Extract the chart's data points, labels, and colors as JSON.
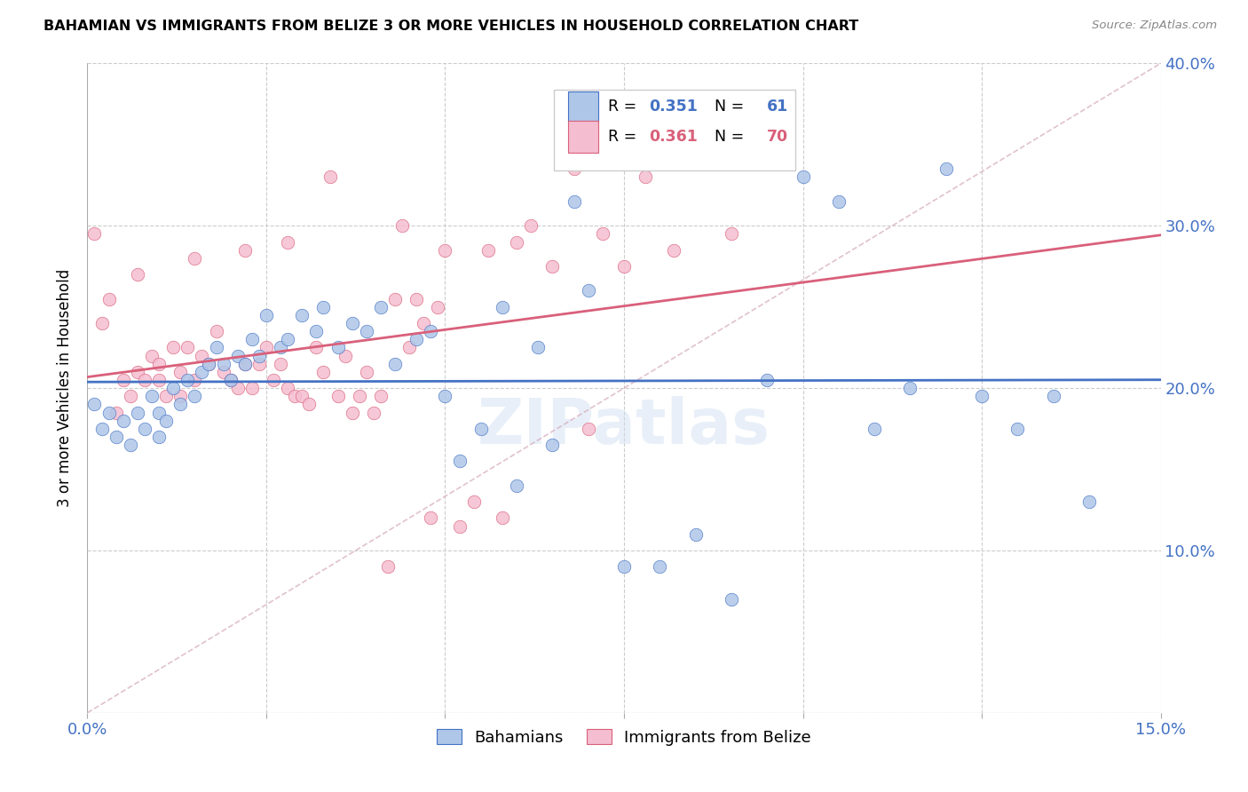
{
  "title": "BAHAMIAN VS IMMIGRANTS FROM BELIZE 3 OR MORE VEHICLES IN HOUSEHOLD CORRELATION CHART",
  "source": "Source: ZipAtlas.com",
  "ylabel": "3 or more Vehicles in Household",
  "legend_label_blue": "Bahamians",
  "legend_label_pink": "Immigrants from Belize",
  "r_blue": 0.351,
  "n_blue": 61,
  "r_pink": 0.361,
  "n_pink": 70,
  "color_blue": "#aec6e8",
  "color_pink": "#f5bdd0",
  "line_color_blue": "#4472c4",
  "line_color_pink": "#d9607a",
  "line_color_diag": "#d4a8b8",
  "background_color": "#ffffff",
  "grid_color": "#cccccc",
  "x_min": 0.0,
  "x_max": 0.15,
  "y_min": 0.0,
  "y_max": 0.4,
  "blue_x": [
    0.001,
    0.002,
    0.003,
    0.004,
    0.005,
    0.006,
    0.007,
    0.008,
    0.009,
    0.01,
    0.01,
    0.011,
    0.012,
    0.013,
    0.014,
    0.015,
    0.016,
    0.017,
    0.018,
    0.019,
    0.02,
    0.021,
    0.022,
    0.023,
    0.024,
    0.025,
    0.027,
    0.028,
    0.03,
    0.032,
    0.033,
    0.035,
    0.037,
    0.039,
    0.041,
    0.043,
    0.046,
    0.048,
    0.05,
    0.052,
    0.055,
    0.058,
    0.06,
    0.063,
    0.065,
    0.068,
    0.07,
    0.075,
    0.08,
    0.085,
    0.09,
    0.095,
    0.1,
    0.105,
    0.11,
    0.115,
    0.12,
    0.125,
    0.13,
    0.135,
    0.14
  ],
  "blue_y": [
    0.19,
    0.175,
    0.185,
    0.17,
    0.18,
    0.165,
    0.185,
    0.175,
    0.195,
    0.17,
    0.185,
    0.18,
    0.2,
    0.19,
    0.205,
    0.195,
    0.21,
    0.215,
    0.225,
    0.215,
    0.205,
    0.22,
    0.215,
    0.23,
    0.22,
    0.245,
    0.225,
    0.23,
    0.245,
    0.235,
    0.25,
    0.225,
    0.24,
    0.235,
    0.25,
    0.215,
    0.23,
    0.235,
    0.195,
    0.155,
    0.175,
    0.25,
    0.14,
    0.225,
    0.165,
    0.315,
    0.26,
    0.09,
    0.09,
    0.11,
    0.07,
    0.205,
    0.33,
    0.315,
    0.175,
    0.2,
    0.335,
    0.195,
    0.175,
    0.195,
    0.13
  ],
  "pink_x": [
    0.001,
    0.002,
    0.003,
    0.004,
    0.005,
    0.006,
    0.007,
    0.007,
    0.008,
    0.009,
    0.01,
    0.01,
    0.011,
    0.012,
    0.013,
    0.013,
    0.014,
    0.015,
    0.015,
    0.016,
    0.017,
    0.018,
    0.019,
    0.02,
    0.021,
    0.022,
    0.022,
    0.023,
    0.024,
    0.025,
    0.026,
    0.027,
    0.028,
    0.028,
    0.029,
    0.03,
    0.031,
    0.032,
    0.033,
    0.034,
    0.035,
    0.036,
    0.037,
    0.038,
    0.039,
    0.04,
    0.041,
    0.042,
    0.043,
    0.044,
    0.045,
    0.046,
    0.047,
    0.048,
    0.049,
    0.05,
    0.052,
    0.054,
    0.056,
    0.058,
    0.06,
    0.062,
    0.065,
    0.068,
    0.07,
    0.072,
    0.075,
    0.078,
    0.082,
    0.09
  ],
  "pink_y": [
    0.295,
    0.24,
    0.255,
    0.185,
    0.205,
    0.195,
    0.21,
    0.27,
    0.205,
    0.22,
    0.215,
    0.205,
    0.195,
    0.225,
    0.195,
    0.21,
    0.225,
    0.205,
    0.28,
    0.22,
    0.215,
    0.235,
    0.21,
    0.205,
    0.2,
    0.215,
    0.285,
    0.2,
    0.215,
    0.225,
    0.205,
    0.215,
    0.2,
    0.29,
    0.195,
    0.195,
    0.19,
    0.225,
    0.21,
    0.33,
    0.195,
    0.22,
    0.185,
    0.195,
    0.21,
    0.185,
    0.195,
    0.09,
    0.255,
    0.3,
    0.225,
    0.255,
    0.24,
    0.12,
    0.25,
    0.285,
    0.115,
    0.13,
    0.285,
    0.12,
    0.29,
    0.3,
    0.275,
    0.335,
    0.175,
    0.295,
    0.275,
    0.33,
    0.285,
    0.295
  ]
}
